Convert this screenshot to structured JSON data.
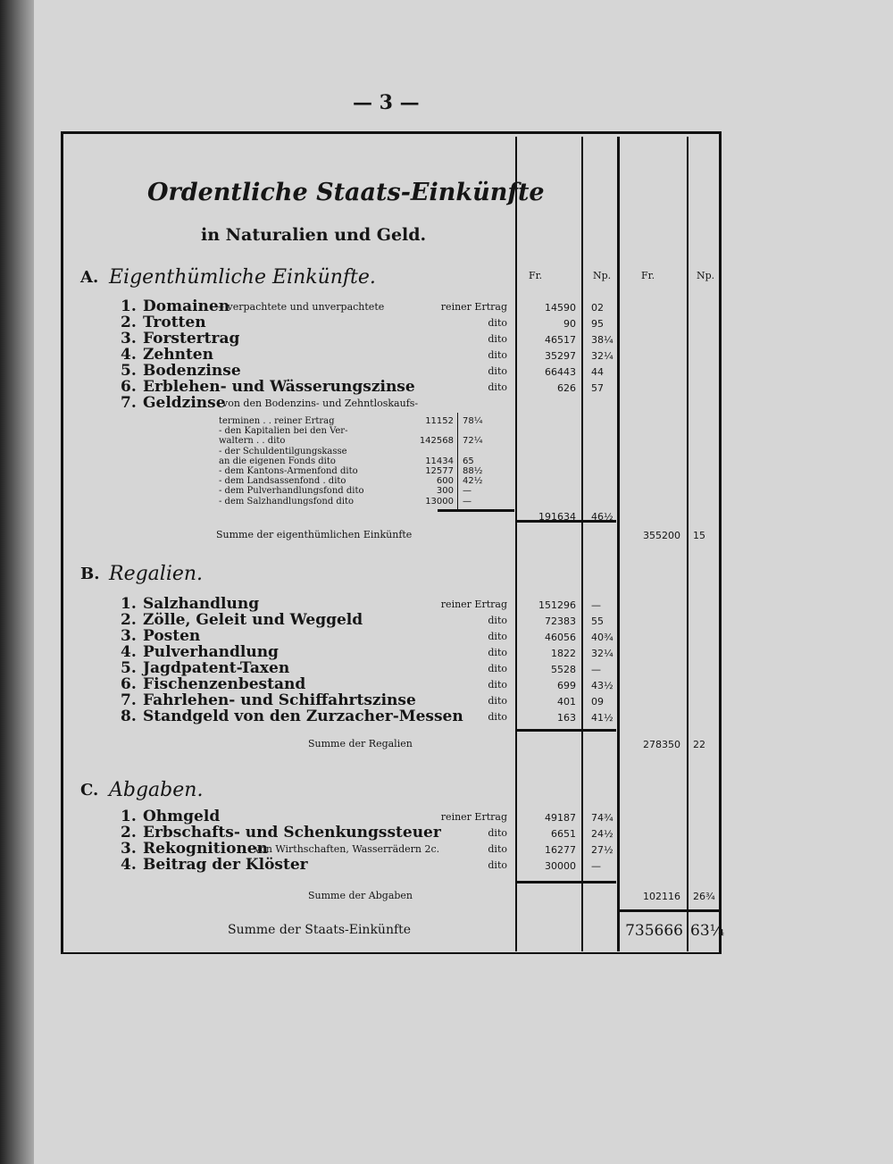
{
  "page_number": "— 3 —",
  "title": "Ordentliche Staats-Einkünfte",
  "subtitle": "in Naturalien und Geld.",
  "col_headers": {
    "fr1": "Fr.",
    "np1": "Np.",
    "fr2": "Fr.",
    "np2": "Np."
  },
  "sections": [
    {
      "letter": "A.",
      "heading": "Eigenthümliche Einkünfte.",
      "items": [
        {
          "no": "1.",
          "name": "Domainen",
          "note": "— verpachtete und unverpachtete",
          "kind": "reiner Ertrag",
          "fr": "14590",
          "np": "02"
        },
        {
          "no": "2.",
          "name": "Trotten",
          "note": "",
          "kind": "dito",
          "fr": "90",
          "np": "95"
        },
        {
          "no": "3.",
          "name": "Forstertrag",
          "note": "",
          "kind": "dito",
          "fr": "46517",
          "np": "38¼"
        },
        {
          "no": "4.",
          "name": "Zehnten",
          "note": "",
          "kind": "dito",
          "fr": "35297",
          "np": "32¼"
        },
        {
          "no": "5.",
          "name": "Bodenzinse",
          "note": "",
          "kind": "dito",
          "fr": "66443",
          "np": "44"
        },
        {
          "no": "6.",
          "name": "Erblehen- und Wässerungszinse",
          "note": "",
          "kind": "dito",
          "fr": "626",
          "np": "57"
        },
        {
          "no": "7.",
          "name": "Geldzinse",
          "note": "von den Bodenzins- und Zehntloskaufs-",
          "kind": "",
          "fr": "",
          "np": ""
        }
      ],
      "geldzinse": [
        {
          "text": "terminen . . reiner Ertrag",
          "fr": "11152",
          "np": "78¼"
        },
        {
          "text": "- den Kapitalien bei den Ver-",
          "fr": "",
          "np": ""
        },
        {
          "text": "waltern . . dito",
          "fr": "142568",
          "np": "72¼"
        },
        {
          "text": "- der Schuldentilgungskasse",
          "fr": "",
          "np": ""
        },
        {
          "text": "an die eigenen Fonds dito",
          "fr": "11434",
          "np": "65"
        },
        {
          "text": "- dem Kantons-Armenfond dito",
          "fr": "12577",
          "np": "88½"
        },
        {
          "text": "- dem Landsassenfond . dito",
          "fr": "600",
          "np": "42½"
        },
        {
          "text": "- dem Pulverhandlungsfond dito",
          "fr": "300",
          "np": "—"
        },
        {
          "text": "- dem Salzhandlungsfond dito",
          "fr": "13000",
          "np": "—"
        }
      ],
      "geldzinse_total": {
        "fr": "191634",
        "np": "46½"
      },
      "sum": {
        "label": "Summe der eigenthümlichen Einkünfte",
        "fr": "355200",
        "np": "15"
      }
    },
    {
      "letter": "B.",
      "heading": "Regalien.",
      "items": [
        {
          "no": "1.",
          "name": "Salzhandlung",
          "note": "",
          "kind": "reiner Ertrag",
          "fr": "151296",
          "np": "—"
        },
        {
          "no": "2.",
          "name": "Zölle, Geleit und Weggeld",
          "note": "",
          "kind": "dito",
          "fr": "72383",
          "np": "55"
        },
        {
          "no": "3.",
          "name": "Posten",
          "note": "",
          "kind": "dito",
          "fr": "46056",
          "np": "40¾"
        },
        {
          "no": "4.",
          "name": "Pulverhandlung",
          "note": "",
          "kind": "dito",
          "fr": "1822",
          "np": "32¼"
        },
        {
          "no": "5.",
          "name": "Jagdpatent-Taxen",
          "note": "",
          "kind": "dito",
          "fr": "5528",
          "np": "—"
        },
        {
          "no": "6.",
          "name": "Fischenzenbestand",
          "note": "",
          "kind": "dito",
          "fr": "699",
          "np": "43½"
        },
        {
          "no": "7.",
          "name": "Fahrlehen- und Schiffahrtszinse",
          "note": "",
          "kind": "dito",
          "fr": "401",
          "np": "09"
        },
        {
          "no": "8.",
          "name": "Standgeld von den Zurzacher-Messen",
          "note": "",
          "kind": "dito",
          "fr": "163",
          "np": "41½"
        }
      ],
      "sum": {
        "label": "Summe der Regalien",
        "fr": "278350",
        "np": "22"
      }
    },
    {
      "letter": "C.",
      "heading": "Abgaben.",
      "items": [
        {
          "no": "1.",
          "name": "Ohmgeld",
          "note": "",
          "kind": "reiner Ertrag",
          "fr": "49187",
          "np": "74¾"
        },
        {
          "no": "2.",
          "name": "Erbschafts- und Schenkungssteuer",
          "note": "",
          "kind": "dito",
          "fr": "6651",
          "np": "24½"
        },
        {
          "no": "3.",
          "name": "Rekognitionen",
          "note": "von Wirthschaften, Wasserrädern 2c.",
          "kind": "dito",
          "fr": "16277",
          "np": "27½"
        },
        {
          "no": "4.",
          "name": "Beitrag der Klöster",
          "note": "",
          "kind": "dito",
          "fr": "30000",
          "np": "—"
        }
      ],
      "sum": {
        "label": "Summe der Abgaben",
        "fr": "102116",
        "np": "26¾"
      }
    }
  ],
  "grand_total": {
    "label": "Summe der Staats-Einkünfte",
    "fr": "735666",
    "np": "63¼"
  }
}
